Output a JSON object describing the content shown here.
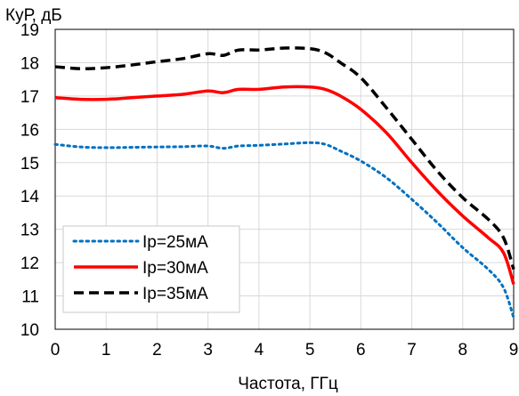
{
  "chart_data": {
    "type": "line",
    "xlabel": "Частота, ГГц",
    "ylabel": "КуР, дБ",
    "xlim": [
      0,
      9
    ],
    "ylim": [
      10,
      19
    ],
    "xticks": [
      "0",
      "1",
      "2",
      "3",
      "4",
      "5",
      "6",
      "7",
      "8",
      "9"
    ],
    "yticks": [
      "10",
      "11",
      "12",
      "13",
      "14",
      "15",
      "16",
      "17",
      "18",
      "19"
    ],
    "grid": true,
    "legend_position": "bottom-left",
    "series": [
      {
        "name": "Ip=25мА",
        "color": "#0070c0",
        "dash": "dotted",
        "x": [
          0,
          0.5,
          1,
          1.5,
          2,
          2.5,
          3,
          3.3,
          3.6,
          4,
          4.5,
          5,
          5.3,
          5.6,
          6,
          6.5,
          7,
          7.5,
          8,
          8.5,
          8.8,
          9
        ],
        "y": [
          15.55,
          15.47,
          15.45,
          15.46,
          15.47,
          15.48,
          15.5,
          15.43,
          15.5,
          15.52,
          15.56,
          15.6,
          15.55,
          15.35,
          15.05,
          14.55,
          13.9,
          13.2,
          12.45,
          11.8,
          11.25,
          10.35
        ]
      },
      {
        "name": "Ip=30мА",
        "color": "#ff0000",
        "dash": "solid",
        "x": [
          0,
          0.5,
          1,
          1.5,
          2,
          2.5,
          3,
          3.3,
          3.6,
          4,
          4.5,
          5,
          5.3,
          5.6,
          6,
          6.5,
          7,
          7.5,
          8,
          8.5,
          8.8,
          9
        ],
        "y": [
          16.95,
          16.9,
          16.9,
          16.95,
          17.0,
          17.05,
          17.15,
          17.1,
          17.2,
          17.2,
          17.27,
          17.27,
          17.2,
          17.0,
          16.6,
          15.9,
          15.0,
          14.15,
          13.4,
          12.75,
          12.3,
          11.35
        ]
      },
      {
        "name": "Ip=35мА",
        "color": "#000000",
        "dash": "dashed",
        "x": [
          0,
          0.5,
          1,
          1.5,
          2,
          2.5,
          3,
          3.3,
          3.6,
          4,
          4.5,
          5,
          5.3,
          5.6,
          6,
          6.5,
          7,
          7.5,
          8,
          8.5,
          8.8,
          9
        ],
        "y": [
          17.88,
          17.82,
          17.85,
          17.93,
          18.03,
          18.12,
          18.27,
          18.22,
          18.38,
          18.38,
          18.44,
          18.42,
          18.3,
          18.0,
          17.55,
          16.65,
          15.7,
          14.75,
          13.95,
          13.3,
          12.75,
          11.8
        ]
      }
    ]
  }
}
